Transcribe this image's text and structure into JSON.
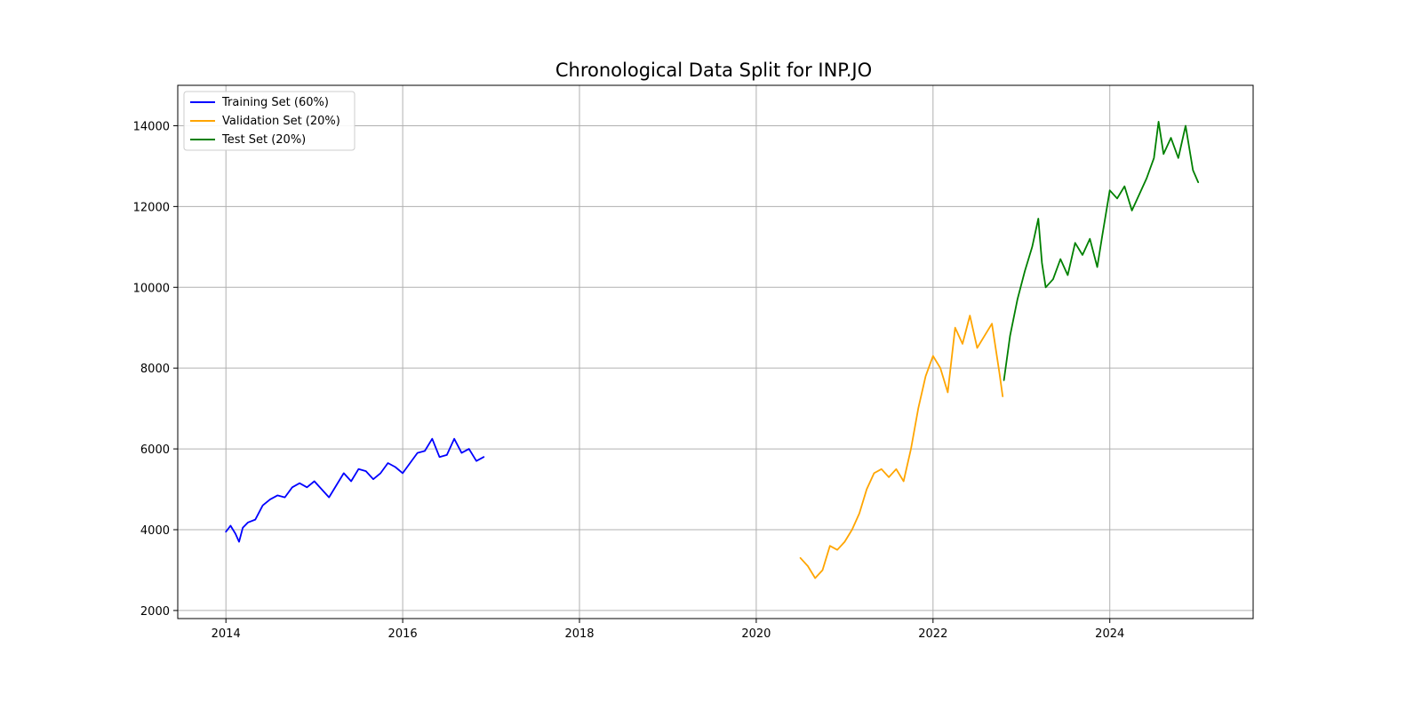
{
  "chart_data": {
    "type": "line",
    "title": "Chronological Data Split for INP.JO",
    "xlabel": "",
    "ylabel": "",
    "xlim": [
      "2013-06-15",
      "2025-08-15"
    ],
    "ylim": [
      1800,
      15000
    ],
    "x_ticks": [
      "2014",
      "2016",
      "2018",
      "2020",
      "2022",
      "2024"
    ],
    "y_ticks": [
      "2000",
      "4000",
      "6000",
      "8000",
      "10000",
      "12000",
      "14000"
    ],
    "grid": true,
    "legend_position": "top-left",
    "series": [
      {
        "name": "Training Set (60%)",
        "color": "#0000ff",
        "points": [
          [
            "2014-01-01",
            3950
          ],
          [
            "2014-01-20",
            4100
          ],
          [
            "2014-02-10",
            3900
          ],
          [
            "2014-02-25",
            3700
          ],
          [
            "2014-03-10",
            4050
          ],
          [
            "2014-04-01",
            4180
          ],
          [
            "2014-05-01",
            4250
          ],
          [
            "2014-06-01",
            4600
          ],
          [
            "2014-07-01",
            4750
          ],
          [
            "2014-08-01",
            4850
          ],
          [
            "2014-09-01",
            4800
          ],
          [
            "2014-10-01",
            5050
          ],
          [
            "2014-11-01",
            5150
          ],
          [
            "2014-12-01",
            5050
          ],
          [
            "2015-01-01",
            5200
          ],
          [
            "2015-02-01",
            5000
          ],
          [
            "2015-03-01",
            4800
          ],
          [
            "2015-04-01",
            5100
          ],
          [
            "2015-05-01",
            5400
          ],
          [
            "2015-06-01",
            5200
          ],
          [
            "2015-07-01",
            5500
          ],
          [
            "2015-08-01",
            5450
          ],
          [
            "2015-09-01",
            5250
          ],
          [
            "2015-10-01",
            5400
          ],
          [
            "2015-11-01",
            5650
          ],
          [
            "2015-12-01",
            5550
          ],
          [
            "2016-01-01",
            5400
          ],
          [
            "2016-02-01",
            5650
          ],
          [
            "2016-03-01",
            5900
          ],
          [
            "2016-04-01",
            5950
          ],
          [
            "2016-05-01",
            6250
          ],
          [
            "2016-06-01",
            5800
          ],
          [
            "2016-07-01",
            5850
          ],
          [
            "2016-08-01",
            6250
          ],
          [
            "2016-09-01",
            5900
          ],
          [
            "2016-10-01",
            6000
          ],
          [
            "2016-11-01",
            5700
          ],
          [
            "2016-12-01",
            5800
          ]
        ]
      },
      {
        "name": "Validation Set (20%)",
        "color": "#ffa500",
        "points": [
          [
            "2020-07-01",
            3300
          ],
          [
            "2020-08-01",
            3100
          ],
          [
            "2020-09-01",
            2800
          ],
          [
            "2020-10-01",
            3000
          ],
          [
            "2020-11-01",
            3600
          ],
          [
            "2020-12-01",
            3500
          ],
          [
            "2021-01-01",
            3700
          ],
          [
            "2021-02-01",
            4000
          ],
          [
            "2021-03-01",
            4400
          ],
          [
            "2021-04-01",
            5000
          ],
          [
            "2021-05-01",
            5400
          ],
          [
            "2021-06-01",
            5500
          ],
          [
            "2021-07-01",
            5300
          ],
          [
            "2021-08-01",
            5500
          ],
          [
            "2021-09-01",
            5200
          ],
          [
            "2021-10-01",
            6000
          ],
          [
            "2021-11-01",
            7000
          ],
          [
            "2021-12-01",
            7800
          ],
          [
            "2022-01-01",
            8300
          ],
          [
            "2022-02-01",
            8000
          ],
          [
            "2022-03-01",
            7400
          ],
          [
            "2022-04-01",
            9000
          ],
          [
            "2022-05-01",
            8600
          ],
          [
            "2022-06-01",
            9300
          ],
          [
            "2022-07-01",
            8500
          ],
          [
            "2022-08-01",
            8800
          ],
          [
            "2022-09-01",
            9100
          ],
          [
            "2022-10-01",
            7900
          ],
          [
            "2022-10-15",
            7300
          ]
        ]
      },
      {
        "name": "Test Set (20%)",
        "color": "#008000",
        "points": [
          [
            "2022-10-20",
            7700
          ],
          [
            "2022-11-15",
            8800
          ],
          [
            "2022-12-15",
            9700
          ],
          [
            "2023-01-15",
            10400
          ],
          [
            "2023-02-15",
            11000
          ],
          [
            "2023-03-10",
            11700
          ],
          [
            "2023-03-25",
            10600
          ],
          [
            "2023-04-10",
            10000
          ],
          [
            "2023-05-10",
            10200
          ],
          [
            "2023-06-10",
            10700
          ],
          [
            "2023-07-10",
            10300
          ],
          [
            "2023-08-10",
            11100
          ],
          [
            "2023-09-10",
            10800
          ],
          [
            "2023-10-10",
            11200
          ],
          [
            "2023-11-10",
            10500
          ],
          [
            "2023-12-01",
            11300
          ],
          [
            "2024-01-01",
            12400
          ],
          [
            "2024-02-01",
            12200
          ],
          [
            "2024-03-01",
            12500
          ],
          [
            "2024-04-01",
            11900
          ],
          [
            "2024-05-01",
            12300
          ],
          [
            "2024-06-01",
            12700
          ],
          [
            "2024-07-01",
            13200
          ],
          [
            "2024-07-20",
            14100
          ],
          [
            "2024-08-10",
            13300
          ],
          [
            "2024-09-10",
            13700
          ],
          [
            "2024-10-10",
            13200
          ],
          [
            "2024-11-10",
            14000
          ],
          [
            "2024-12-10",
            12900
          ],
          [
            "2025-01-01",
            12600
          ]
        ]
      }
    ]
  }
}
